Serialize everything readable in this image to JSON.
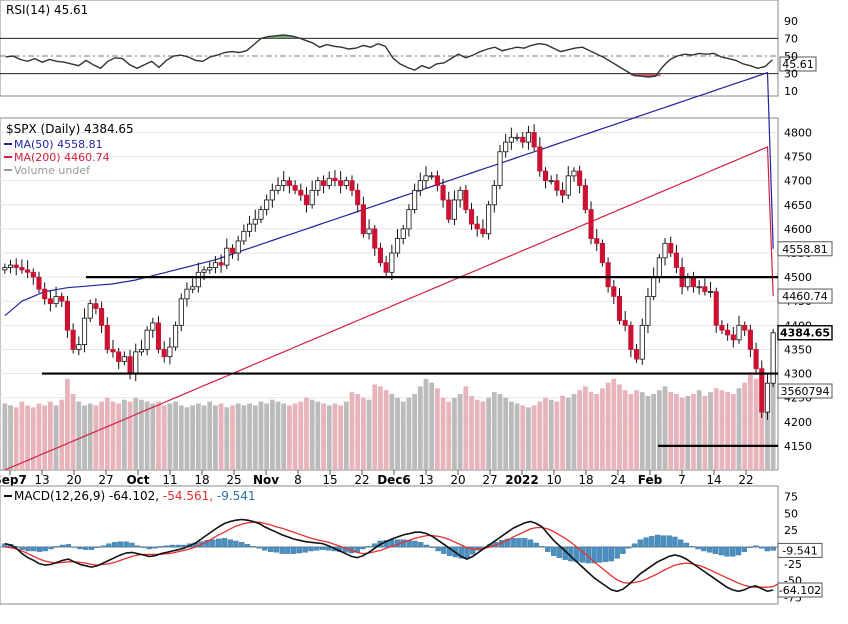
{
  "chart_data": [
    {
      "type": "line",
      "panel": "RSI",
      "legend_label": "RSI(14) 45.61",
      "last_value_label": "45.61",
      "ylim": [
        0,
        100
      ],
      "ticks": [
        "90",
        "70",
        "50",
        "30",
        "10"
      ],
      "overbought": 70,
      "oversold": 30,
      "line_color": "#333333",
      "shade_color": "#4f8f4f",
      "last": 45.61,
      "values": [
        49,
        50,
        46,
        44,
        47,
        43,
        46,
        44,
        43,
        41,
        39,
        45,
        40,
        36,
        44,
        48,
        47,
        40,
        36,
        40,
        44,
        37,
        45,
        50,
        51,
        49,
        45,
        44,
        49,
        51,
        54,
        55,
        54,
        56,
        63,
        70,
        72,
        73,
        74,
        73,
        71,
        68,
        65,
        60,
        63,
        61,
        60,
        58,
        59,
        62,
        60,
        64,
        61,
        48,
        41,
        37,
        34,
        39,
        36,
        41,
        42,
        47,
        52,
        48,
        51,
        55,
        58,
        60,
        56,
        58,
        60,
        59,
        62,
        64,
        63,
        59,
        55,
        57,
        59,
        60,
        56,
        52,
        48,
        43,
        38,
        33,
        28,
        27,
        26,
        27,
        38,
        46,
        50,
        52,
        51,
        53,
        52,
        53,
        49,
        47,
        45,
        41,
        39,
        36,
        38,
        45.61
      ]
    },
    {
      "type": "candlestick",
      "panel": "price",
      "title": "$SPX (Daily) 4384.65",
      "legend": [
        {
          "name": "MA(50) 4558.81",
          "color": "#2323a0"
        },
        {
          "name": "MA(200) 4460.74",
          "color": "#d42040"
        },
        {
          "name": "Volume undef",
          "color": "#999999"
        }
      ],
      "ylim": [
        4100,
        4830
      ],
      "ticks": [
        "4800",
        "4750",
        "4700",
        "4650",
        "4600",
        "4550",
        "4500",
        "4450",
        "4400",
        "4350",
        "4300",
        "4250",
        "4200",
        "4150"
      ],
      "x_ticks": [
        "Sep7",
        "13",
        "20",
        "27",
        "Oct",
        "11",
        "18",
        "25",
        "Nov",
        "8",
        "15",
        "22",
        "Dec6",
        "13",
        "20",
        "27",
        "2022",
        "10",
        "18",
        "24",
        "Feb",
        "7",
        "14",
        "22"
      ],
      "price_labels": {
        "ma50": "4558.81",
        "ma200": "4460.74",
        "close": "4384.65",
        "volume": "3560794"
      },
      "up_color": "#ffffff",
      "down_color": "#cc1133",
      "horizontal_lines": [
        4500,
        4300,
        4150
      ],
      "closes": [
        4520,
        4525,
        4520,
        4515,
        4510,
        4500,
        4475,
        4455,
        4445,
        4460,
        4450,
        4390,
        4350,
        4360,
        4415,
        4445,
        4435,
        4400,
        4350,
        4345,
        4325,
        4335,
        4300,
        4345,
        4350,
        4390,
        4405,
        4350,
        4335,
        4355,
        4400,
        4455,
        4475,
        4480,
        4510,
        4515,
        4520,
        4530,
        4525,
        4560,
        4550,
        4575,
        4595,
        4610,
        4620,
        4640,
        4660,
        4680,
        4690,
        4700,
        4690,
        4680,
        4670,
        4650,
        4680,
        4700,
        4690,
        4705,
        4700,
        4690,
        4700,
        4680,
        4650,
        4590,
        4600,
        4560,
        4530,
        4510,
        4550,
        4580,
        4600,
        4640,
        4680,
        4700,
        4710,
        4710,
        4690,
        4660,
        4620,
        4660,
        4680,
        4640,
        4610,
        4600,
        4590,
        4650,
        4690,
        4760,
        4780,
        4790,
        4790,
        4780,
        4800,
        4770,
        4720,
        4700,
        4700,
        4680,
        4670,
        4710,
        4720,
        4690,
        4640,
        4580,
        4570,
        4530,
        4480,
        4460,
        4410,
        4400,
        4350,
        4330,
        4400,
        4460,
        4500,
        4540,
        4570,
        4550,
        4520,
        4480,
        4500,
        4480,
        4480,
        4470,
        4470,
        4400,
        4390,
        4380,
        4370,
        4400,
        4390,
        4350,
        4310,
        4220,
        4280,
        4384.65
      ],
      "ma50": [
        4420,
        4430,
        4440,
        4450,
        4455,
        4460,
        4465,
        4470,
        4472,
        4474,
        4476,
        4478,
        4479,
        4480,
        4481,
        4482,
        4483,
        4484,
        4485,
        4486,
        4488,
        4490,
        4492,
        4494,
        4497,
        4500,
        4503,
        4506,
        4509,
        4512,
        4515,
        4518,
        4521,
        4524,
        4527,
        4530,
        4533,
        4536,
        4540,
        4544,
        4548,
        4552,
        4556,
        4560,
        4564,
        4568,
        4572,
        4576,
        4580,
        4584,
        4588,
        4592,
        4596,
        4600,
        4604,
        4608,
        4612,
        4616,
        4620,
        4624,
        4628,
        4632,
        4636,
        4640,
        4644,
        4648,
        4652,
        4656,
        4660,
        4664,
        4668,
        4672,
        4676,
        4680,
        4684,
        4688,
        4692,
        4696,
        4700,
        4704,
        4708,
        4712,
        4716,
        4720,
        4724,
        4728,
        4732,
        4736,
        4740,
        4744,
        4748,
        4752,
        4756,
        4760,
        4764,
        4768,
        4772,
        4776,
        4780,
        4784,
        4788,
        4792,
        4796,
        4800,
        4804,
        4808,
        4812,
        4816,
        4820,
        4824,
        4828,
        4832,
        4836,
        4840,
        4844,
        4848,
        4852,
        4856,
        4860,
        4864,
        4868,
        4872,
        4876,
        4880,
        4884,
        4888,
        4892,
        4896,
        4900,
        4904,
        4908,
        4912,
        4916,
        4920,
        4924,
        4558.81
      ],
      "ma200": [
        4100,
        4105,
        4110,
        4115,
        4120,
        4125,
        4130,
        4135,
        4140,
        4145,
        4150,
        4155,
        4160,
        4165,
        4170,
        4175,
        4180,
        4185,
        4190,
        4195,
        4200,
        4205,
        4210,
        4215,
        4220,
        4225,
        4230,
        4235,
        4240,
        4245,
        4250,
        4255,
        4260,
        4265,
        4270,
        4275,
        4280,
        4285,
        4290,
        4295,
        4300,
        4305,
        4310,
        4315,
        4320,
        4325,
        4330,
        4335,
        4340,
        4345,
        4350,
        4355,
        4360,
        4365,
        4370,
        4375,
        4380,
        4385,
        4390,
        4395,
        4400,
        4405,
        4410,
        4415,
        4420,
        4425,
        4430,
        4435,
        4440,
        4445,
        4450,
        4455,
        4460,
        4465,
        4470,
        4475,
        4480,
        4485,
        4490,
        4495,
        4500,
        4505,
        4510,
        4515,
        4520,
        4525,
        4530,
        4535,
        4540,
        4545,
        4550,
        4555,
        4560,
        4565,
        4570,
        4575,
        4580,
        4585,
        4590,
        4595,
        4600,
        4605,
        4610,
        4615,
        4620,
        4625,
        4630,
        4635,
        4640,
        4645,
        4650,
        4655,
        4660,
        4665,
        4670,
        4675,
        4680,
        4685,
        4690,
        4695,
        4700,
        4705,
        4710,
        4715,
        4720,
        4725,
        4730,
        4735,
        4740,
        4745,
        4750,
        4755,
        4760,
        4765,
        4770,
        4460.74
      ],
      "volume": [
        35,
        34,
        33,
        36,
        34,
        33,
        35,
        34,
        36,
        34,
        37,
        48,
        40,
        36,
        34,
        35,
        34,
        36,
        38,
        36,
        35,
        37,
        36,
        38,
        37,
        36,
        35,
        36,
        34,
        35,
        36,
        34,
        33,
        34,
        35,
        34,
        36,
        34,
        35,
        33,
        34,
        35,
        34,
        35,
        34,
        36,
        35,
        37,
        36,
        35,
        34,
        35,
        36,
        38,
        37,
        36,
        35,
        34,
        35,
        34,
        36,
        41,
        40,
        38,
        37,
        45,
        44,
        42,
        40,
        38,
        36,
        38,
        40,
        44,
        48,
        46,
        43,
        38,
        36,
        38,
        40,
        44,
        39,
        37,
        36,
        38,
        41,
        40,
        38,
        36,
        35,
        34,
        33,
        34,
        36,
        38,
        37,
        36,
        39,
        38,
        40,
        42,
        44,
        41,
        40,
        43,
        46,
        48,
        45,
        42,
        40,
        42,
        41,
        39,
        40,
        42,
        44,
        41,
        40,
        38,
        39,
        40,
        42,
        39,
        41,
        43,
        42,
        41,
        40,
        43,
        46,
        50,
        48,
        44,
        43,
        46
      ]
    },
    {
      "type": "line",
      "panel": "MACD",
      "legend_label": "MACD(12,26,9) -64.102, -54.561, -9.541",
      "legend_parts": {
        "prefix": "MACD(12,26,9)",
        "macd": "-64.102",
        "signal": "-54.561",
        "hist": "-9.541"
      },
      "ylim": [
        -85,
        85
      ],
      "ticks": [
        "75",
        "50",
        "25",
        "0",
        "-25",
        "-50",
        "-75"
      ],
      "last_labels": {
        "hist": "-9.541",
        "macd": "-64.102"
      },
      "macd_color": "#111111",
      "signal_color": "#e83030",
      "hist_color": "#4a8fc2",
      "macd": [
        5,
        3,
        -2,
        -10,
        -16,
        -20,
        -25,
        -27,
        -26,
        -23,
        -20,
        -18,
        -22,
        -26,
        -28,
        -30,
        -28,
        -24,
        -20,
        -16,
        -12,
        -9,
        -8,
        -10,
        -12,
        -14,
        -13,
        -10,
        -8,
        -6,
        -4,
        -2,
        2,
        6,
        12,
        18,
        24,
        30,
        35,
        38,
        40,
        41,
        40,
        38,
        35,
        30,
        26,
        22,
        18,
        15,
        12,
        10,
        8,
        7,
        6,
        5,
        2,
        -2,
        -6,
        -10,
        -14,
        -16,
        -13,
        -8,
        -2,
        4,
        8,
        12,
        15,
        18,
        20,
        22,
        22,
        20,
        16,
        10,
        4,
        -2,
        -8,
        -14,
        -18,
        -14,
        -8,
        -2,
        4,
        10,
        16,
        22,
        28,
        32,
        36,
        38,
        35,
        30,
        20,
        10,
        2,
        -6,
        -14,
        -22,
        -30,
        -38,
        -46,
        -52,
        -58,
        -64,
        -66,
        -63,
        -56,
        -48,
        -40,
        -34,
        -28,
        -22,
        -18,
        -14,
        -12,
        -14,
        -18,
        -24,
        -30,
        -36,
        -42,
        -48,
        -54,
        -60,
        -64,
        -66,
        -64,
        -60,
        -58,
        -62,
        -66,
        -64.102
      ],
      "signal": [
        0,
        -1,
        -3,
        -6,
        -10,
        -14,
        -18,
        -21,
        -23,
        -24,
        -23,
        -22,
        -22,
        -23,
        -24,
        -26,
        -27,
        -26,
        -25,
        -23,
        -20,
        -17,
        -14,
        -12,
        -11,
        -11,
        -11,
        -11,
        -10,
        -9,
        -7,
        -5,
        -3,
        0,
        4,
        8,
        13,
        18,
        22,
        27,
        31,
        34,
        36,
        37,
        37,
        35,
        33,
        30,
        28,
        25,
        22,
        19,
        16,
        13,
        11,
        9,
        7,
        4,
        1,
        -2,
        -5,
        -8,
        -10,
        -9,
        -7,
        -5,
        -2,
        1,
        4,
        7,
        10,
        13,
        15,
        17,
        17,
        16,
        14,
        11,
        7,
        3,
        -1,
        -3,
        -3,
        -2,
        0,
        3,
        6,
        10,
        15,
        19,
        23,
        27,
        29,
        29,
        27,
        23,
        18,
        13,
        7,
        0,
        -7,
        -14,
        -22,
        -29,
        -36,
        -43,
        -49,
        -53,
        -54,
        -53,
        -51,
        -48,
        -44,
        -40,
        -35,
        -31,
        -27,
        -25,
        -24,
        -25,
        -27,
        -30,
        -34,
        -38,
        -42,
        -46,
        -50,
        -54,
        -57,
        -59,
        -60,
        -60,
        -60,
        -59,
        -54.561
      ]
    }
  ]
}
